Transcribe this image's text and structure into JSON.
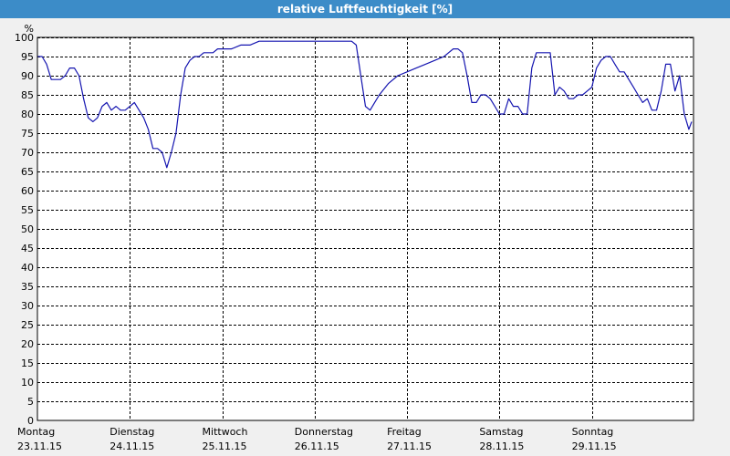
{
  "window": {
    "title": "relative Luftfeuchtigkeit [%]"
  },
  "colors": {
    "line": "#1515b0",
    "grid": "#000000",
    "titlebar": "#3c8cc8",
    "plot_bg": "#ffffff"
  },
  "chart_data": {
    "type": "line",
    "title": "relative Luftfeuchtigkeit [%]",
    "ylabel": "%",
    "xlabel": "",
    "ylim": [
      0,
      100
    ],
    "xlim": [
      0,
      7.1
    ],
    "grid": true,
    "yticks": [
      0,
      5,
      10,
      15,
      20,
      25,
      30,
      35,
      40,
      45,
      50,
      55,
      60,
      65,
      70,
      75,
      80,
      85,
      90,
      95,
      100
    ],
    "xticks": [
      {
        "x": 0,
        "day": "Montag",
        "date": "23.11.15"
      },
      {
        "x": 1,
        "day": "Dienstag",
        "date": "24.11.15"
      },
      {
        "x": 2,
        "day": "Mittwoch",
        "date": "25.11.15"
      },
      {
        "x": 3,
        "day": "Donnerstag",
        "date": "26.11.15"
      },
      {
        "x": 4,
        "day": "Freitag",
        "date": "27.11.15"
      },
      {
        "x": 5,
        "day": "Samstag",
        "date": "28.11.15"
      },
      {
        "x": 6,
        "day": "Sonntag",
        "date": "29.11.15"
      }
    ],
    "series": [
      {
        "name": "",
        "x": [
          0,
          0.05,
          0.1,
          0.15,
          0.2,
          0.25,
          0.3,
          0.35,
          0.4,
          0.45,
          0.5,
          0.55,
          0.6,
          0.65,
          0.7,
          0.75,
          0.8,
          0.85,
          0.9,
          0.95,
          1.0,
          1.05,
          1.1,
          1.15,
          1.2,
          1.25,
          1.3,
          1.35,
          1.4,
          1.45,
          1.5,
          1.55,
          1.6,
          1.65,
          1.7,
          1.75,
          1.8,
          1.85,
          1.9,
          1.95,
          2.0,
          2.1,
          2.2,
          2.3,
          2.4,
          2.5,
          2.6,
          2.7,
          2.8,
          2.9,
          3.0,
          3.1,
          3.2,
          3.3,
          3.4,
          3.45,
          3.5,
          3.55,
          3.6,
          3.65,
          3.7,
          3.8,
          3.9,
          4.0,
          4.1,
          4.2,
          4.3,
          4.4,
          4.45,
          4.5,
          4.55,
          4.6,
          4.65,
          4.7,
          4.75,
          4.8,
          4.85,
          4.9,
          4.95,
          5.0,
          5.05,
          5.1,
          5.15,
          5.2,
          5.25,
          5.3,
          5.35,
          5.4,
          5.45,
          5.5,
          5.55,
          5.6,
          5.65,
          5.7,
          5.75,
          5.8,
          5.85,
          5.9,
          5.95,
          6.0,
          6.05,
          6.1,
          6.15,
          6.2,
          6.25,
          6.3,
          6.35,
          6.4,
          6.45,
          6.5,
          6.55,
          6.6,
          6.65,
          6.7,
          6.75,
          6.8,
          6.85,
          6.9,
          6.95,
          7.0,
          7.05,
          7.08
        ],
        "y": [
          95,
          95,
          93,
          89,
          89,
          89,
          90,
          92,
          92,
          90,
          84,
          79,
          78,
          79,
          82,
          83,
          81,
          82,
          81,
          81,
          82,
          83,
          81,
          79,
          76,
          71,
          71,
          70,
          66,
          70,
          75,
          85,
          92,
          94,
          95,
          95,
          96,
          96,
          96,
          97,
          97,
          97,
          98,
          98,
          99,
          99,
          99,
          99,
          99,
          99,
          99,
          99,
          99,
          99,
          99,
          98,
          90,
          82,
          81,
          83,
          85,
          88,
          90,
          91,
          92,
          93,
          94,
          95,
          96,
          97,
          97,
          96,
          90,
          83,
          83,
          85,
          85,
          84,
          82,
          80,
          80,
          84,
          82,
          82,
          80,
          80,
          92,
          96,
          96,
          96,
          96,
          85,
          87,
          86,
          84,
          84,
          85,
          85,
          86,
          87,
          92,
          94,
          95,
          95,
          93,
          91,
          91,
          89,
          87,
          85,
          83,
          84,
          81,
          81,
          86,
          93,
          93,
          86,
          90,
          80,
          76,
          78
        ]
      }
    ]
  }
}
